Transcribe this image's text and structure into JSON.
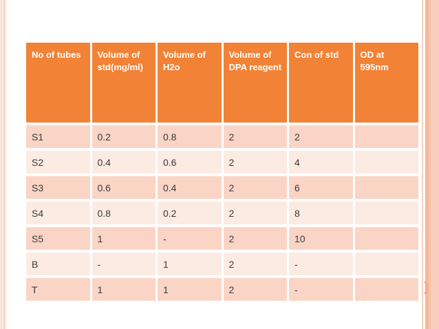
{
  "slide": {
    "background": "#ffffff",
    "accent_orange": "#f28235",
    "row_odd_color": "#fad5c6",
    "row_even_color": "#fcebe2",
    "header_text_color": "#ffffff",
    "body_text_color": "#3a3a3a",
    "left_border_stripe_color": "#f2c6b2",
    "right_border_band_color": "#f9ceba",
    "page_marker": "orange-arc"
  },
  "table": {
    "columns": [
      "No of tubes",
      "Volume of std(mg/ml)",
      "Volume of H2o",
      "Volume of DPA reagent",
      "Con of std",
      "OD at 595nm"
    ],
    "rows": [
      {
        "cells": [
          "S1",
          "0.2",
          "0.8",
          "2",
          "2",
          ""
        ]
      },
      {
        "cells": [
          "S2",
          "0.4",
          "0.6",
          "2",
          "4",
          ""
        ]
      },
      {
        "cells": [
          "S3",
          "0.6",
          "0.4",
          "2",
          "6",
          ""
        ]
      },
      {
        "cells": [
          "S4",
          "0.8",
          "0.2",
          "2",
          "8",
          ""
        ]
      },
      {
        "cells": [
          "S5",
          "1",
          "-",
          "2",
          "10",
          ""
        ]
      },
      {
        "cells": [
          "B",
          "-",
          "1",
          "2",
          "-",
          ""
        ]
      },
      {
        "cells": [
          "T",
          "1",
          "1",
          "2",
          "-",
          ""
        ]
      }
    ]
  }
}
